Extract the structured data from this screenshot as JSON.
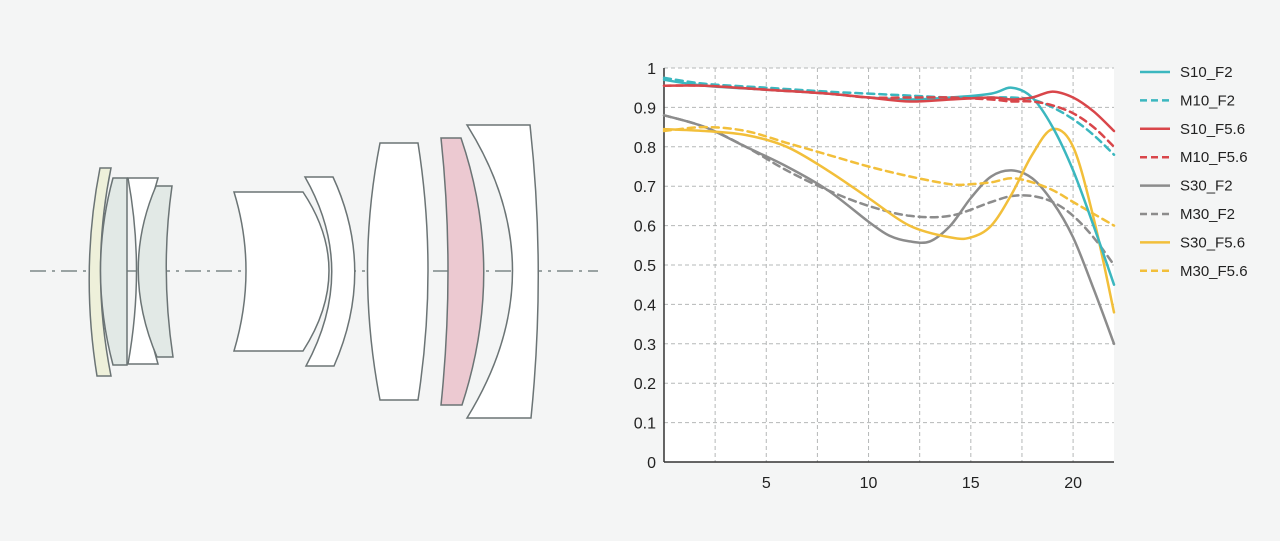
{
  "colors": {
    "cyan": "#3bb7bf",
    "red": "#d9464a",
    "gray": "#8c8c8c",
    "yellow": "#f2bf3a",
    "lens_outline": "#6b7475",
    "lens_fill": "#ffffff",
    "lens_yellow": "#eef0da",
    "lens_green": "#e2e9e6",
    "lens_pink": "#ecc9d1",
    "axis_line": "#9aa3a3"
  },
  "chart_data": {
    "type": "line",
    "title": "",
    "xlabel": "",
    "ylabel": "",
    "xlim": [
      0,
      22
    ],
    "ylim": [
      0,
      1
    ],
    "x_ticks": [
      5,
      10,
      15,
      20
    ],
    "y_ticks": [
      0,
      0.1,
      0.2,
      0.3,
      0.4,
      0.5,
      0.6,
      0.7,
      0.8,
      0.9,
      1
    ],
    "y_tick_labels": [
      "0",
      "0.1",
      "0.2",
      "0.3",
      "0.4",
      "0.5",
      "0.6",
      "0.7",
      "0.8",
      "0.9",
      "1"
    ],
    "grid": true,
    "legend_position": "right",
    "series": [
      {
        "name": "S10_F2",
        "color": "cyan",
        "dash": false,
        "points": [
          [
            0,
            0.97
          ],
          [
            2,
            0.955
          ],
          [
            5,
            0.945
          ],
          [
            8,
            0.935
          ],
          [
            10,
            0.925
          ],
          [
            12,
            0.92
          ],
          [
            14,
            0.925
          ],
          [
            16,
            0.935
          ],
          [
            17,
            0.95
          ],
          [
            18,
            0.925
          ],
          [
            19,
            0.85
          ],
          [
            20,
            0.74
          ],
          [
            21,
            0.6
          ],
          [
            22,
            0.45
          ]
        ]
      },
      {
        "name": "M10_F2",
        "color": "cyan",
        "dash": true,
        "points": [
          [
            0,
            0.975
          ],
          [
            2,
            0.96
          ],
          [
            5,
            0.95
          ],
          [
            8,
            0.94
          ],
          [
            10,
            0.935
          ],
          [
            12,
            0.93
          ],
          [
            14,
            0.925
          ],
          [
            16,
            0.925
          ],
          [
            17,
            0.925
          ],
          [
            18,
            0.92
          ],
          [
            19,
            0.9
          ],
          [
            20,
            0.87
          ],
          [
            21,
            0.83
          ],
          [
            22,
            0.78
          ]
        ]
      },
      {
        "name": "S10_F5.6",
        "color": "red",
        "dash": false,
        "points": [
          [
            0,
            0.955
          ],
          [
            2,
            0.955
          ],
          [
            5,
            0.945
          ],
          [
            8,
            0.935
          ],
          [
            10,
            0.925
          ],
          [
            12,
            0.915
          ],
          [
            14,
            0.92
          ],
          [
            16,
            0.925
          ],
          [
            17,
            0.92
          ],
          [
            18,
            0.925
          ],
          [
            19,
            0.94
          ],
          [
            20,
            0.925
          ],
          [
            21,
            0.89
          ],
          [
            22,
            0.84
          ]
        ]
      },
      {
        "name": "M10_F5.6",
        "color": "red",
        "dash": true,
        "points": [
          [
            0,
            0.955
          ],
          [
            2,
            0.955
          ],
          [
            5,
            0.945
          ],
          [
            8,
            0.935
          ],
          [
            10,
            0.925
          ],
          [
            12,
            0.925
          ],
          [
            14,
            0.925
          ],
          [
            16,
            0.92
          ],
          [
            17,
            0.915
          ],
          [
            18,
            0.915
          ],
          [
            19,
            0.905
          ],
          [
            20,
            0.885
          ],
          [
            21,
            0.85
          ],
          [
            22,
            0.8
          ]
        ]
      },
      {
        "name": "S30_F2",
        "color": "gray",
        "dash": false,
        "points": [
          [
            0,
            0.88
          ],
          [
            2,
            0.85
          ],
          [
            4,
            0.8
          ],
          [
            6,
            0.75
          ],
          [
            8,
            0.69
          ],
          [
            10,
            0.61
          ],
          [
            11,
            0.575
          ],
          [
            12,
            0.56
          ],
          [
            13,
            0.56
          ],
          [
            14,
            0.6
          ],
          [
            15,
            0.67
          ],
          [
            16,
            0.725
          ],
          [
            17,
            0.74
          ],
          [
            18,
            0.72
          ],
          [
            19,
            0.66
          ],
          [
            20,
            0.57
          ],
          [
            21,
            0.44
          ],
          [
            22,
            0.3
          ]
        ]
      },
      {
        "name": "M30_F2",
        "color": "gray",
        "dash": true,
        "points": [
          [
            0,
            0.88
          ],
          [
            2,
            0.85
          ],
          [
            4,
            0.8
          ],
          [
            6,
            0.74
          ],
          [
            8,
            0.69
          ],
          [
            10,
            0.65
          ],
          [
            12,
            0.625
          ],
          [
            14,
            0.625
          ],
          [
            16,
            0.66
          ],
          [
            17,
            0.675
          ],
          [
            18,
            0.675
          ],
          [
            19,
            0.66
          ],
          [
            20,
            0.625
          ],
          [
            21,
            0.57
          ],
          [
            22,
            0.5
          ]
        ]
      },
      {
        "name": "S30_F5.6",
        "color": "yellow",
        "dash": false,
        "points": [
          [
            0,
            0.845
          ],
          [
            2,
            0.84
          ],
          [
            4,
            0.83
          ],
          [
            6,
            0.8
          ],
          [
            8,
            0.74
          ],
          [
            10,
            0.67
          ],
          [
            12,
            0.6
          ],
          [
            14,
            0.57
          ],
          [
            15,
            0.57
          ],
          [
            16,
            0.6
          ],
          [
            17,
            0.68
          ],
          [
            18,
            0.78
          ],
          [
            19,
            0.845
          ],
          [
            20,
            0.8
          ],
          [
            21,
            0.62
          ],
          [
            22,
            0.38
          ]
        ]
      },
      {
        "name": "M30_F5.6",
        "color": "yellow",
        "dash": true,
        "points": [
          [
            0,
            0.84
          ],
          [
            2,
            0.85
          ],
          [
            4,
            0.84
          ],
          [
            6,
            0.81
          ],
          [
            8,
            0.78
          ],
          [
            10,
            0.75
          ],
          [
            12,
            0.725
          ],
          [
            14,
            0.705
          ],
          [
            15,
            0.705
          ],
          [
            16,
            0.71
          ],
          [
            17,
            0.72
          ],
          [
            18,
            0.71
          ],
          [
            19,
            0.69
          ],
          [
            20,
            0.66
          ],
          [
            21,
            0.63
          ],
          [
            22,
            0.6
          ]
        ]
      }
    ]
  }
}
